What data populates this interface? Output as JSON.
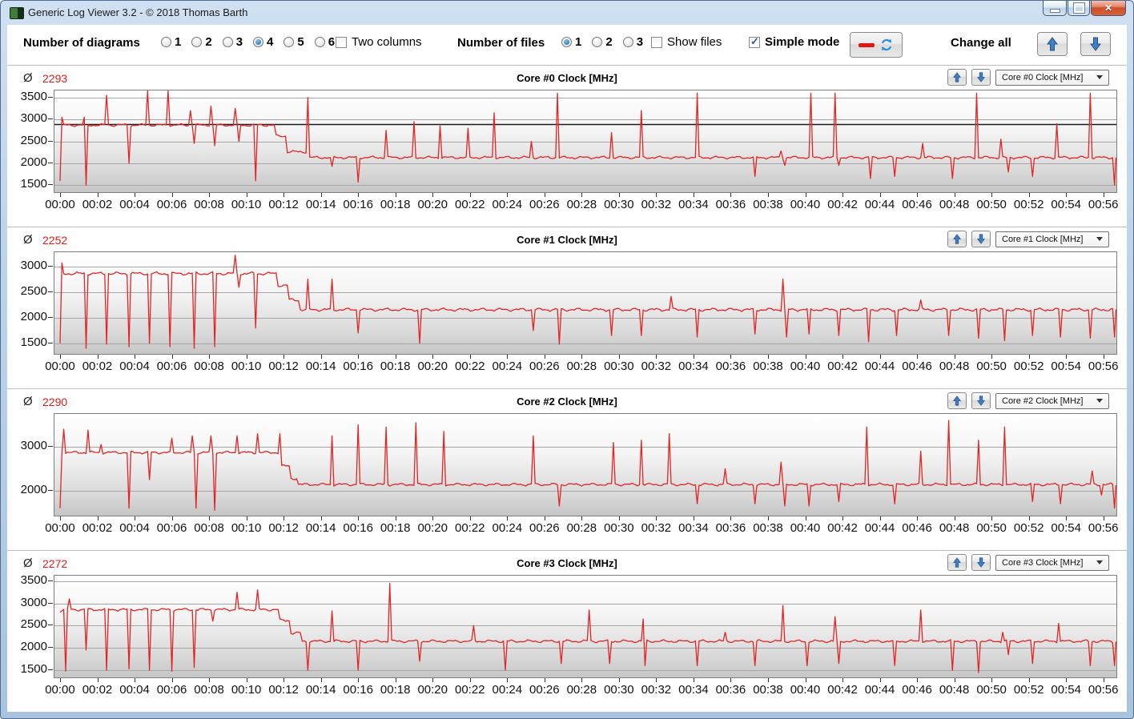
{
  "window": {
    "title": "Generic Log Viewer 3.2 - © 2018 Thomas Barth"
  },
  "icons": {
    "app": "green-log-viewer-icon",
    "minimize": "minimize-icon",
    "maximize": "maximize-icon",
    "close": "close-icon",
    "up": "blue-arrow-up-icon",
    "down": "blue-arrow-down-icon",
    "refresh": "red-line-refresh-icon",
    "average": "Ø",
    "dropdown_caret": "caret-down-icon"
  },
  "toolbar": {
    "diagrams_label": "Number of diagrams",
    "diagram_options": [
      "1",
      "2",
      "3",
      "4",
      "5",
      "6"
    ],
    "diagrams_selected": "4",
    "two_columns_label": "Two columns",
    "two_columns_checked": false,
    "files_label": "Number of files",
    "file_options": [
      "1",
      "2",
      "3"
    ],
    "files_selected": "1",
    "show_files_label": "Show files",
    "show_files_checked": false,
    "simple_mode_label": "Simple mode",
    "simple_mode_checked": true,
    "change_all_label": "Change all"
  },
  "panels": [
    {
      "avg_symbol": "Ø",
      "avg": "2293",
      "title": "Core #0 Clock [MHz]",
      "dropdown_value": "Core #0 Clock [MHz]"
    },
    {
      "avg_symbol": "Ø",
      "avg": "2252",
      "title": "Core #1 Clock [MHz]",
      "dropdown_value": "Core #1 Clock [MHz]"
    },
    {
      "avg_symbol": "Ø",
      "avg": "2290",
      "title": "Core #2 Clock [MHz]",
      "dropdown_value": "Core #2 Clock [MHz]"
    },
    {
      "avg_symbol": "Ø",
      "avg": "2272",
      "title": "Core #3 Clock [MHz]",
      "dropdown_value": "Core #3 Clock [MHz]"
    }
  ],
  "chart_data": [
    {
      "type": "line",
      "title": "Core #0 Clock [MHz]",
      "average": 2293,
      "unit": "MHz",
      "line_color": "#e32424",
      "x_tick_labels": [
        "00:00",
        "00:02",
        "00:04",
        "00:06",
        "00:08",
        "00:10",
        "00:12",
        "00:14",
        "00:16",
        "00:18",
        "00:20",
        "00:22",
        "00:24",
        "00:26",
        "00:28",
        "00:30",
        "00:32",
        "00:34",
        "00:36",
        "00:38",
        "00:40",
        "00:42",
        "00:44",
        "00:46",
        "00:48",
        "00:50",
        "00:52",
        "00:54",
        "00:56"
      ],
      "x_tick_minutes": [
        0,
        2,
        4,
        6,
        8,
        10,
        12,
        14,
        16,
        18,
        20,
        22,
        24,
        26,
        28,
        30,
        32,
        34,
        36,
        38,
        40,
        42,
        44,
        46,
        48,
        50,
        52,
        54,
        56
      ],
      "y_ticks": [
        1500,
        2000,
        2500,
        3000,
        3500
      ],
      "y_range": [
        1340,
        3660
      ],
      "ref_line": 2900,
      "baseline_segments": [
        [
          0,
          11.6,
          2870
        ],
        [
          11.6,
          12.2,
          2620
        ],
        [
          12.2,
          13.25,
          2260
        ],
        [
          13.25,
          57,
          2130
        ]
      ],
      "spike_events": [
        [
          0,
          1600
        ],
        [
          0.15,
          3050
        ],
        [
          1.3,
          3050
        ],
        [
          1.45,
          1500
        ],
        [
          2.45,
          3550
        ],
        [
          3.7,
          2000
        ],
        [
          4.7,
          3650
        ],
        [
          5.85,
          3650
        ],
        [
          7.0,
          3200
        ],
        [
          7.15,
          2450
        ],
        [
          8.1,
          3300
        ],
        [
          8.3,
          2400
        ],
        [
          9.4,
          3250
        ],
        [
          9.55,
          2500
        ],
        [
          10.5,
          1600
        ],
        [
          13.3,
          3500
        ],
        [
          14.6,
          1930
        ],
        [
          16.0,
          1570
        ],
        [
          17.5,
          2750
        ],
        [
          19.0,
          2950
        ],
        [
          20.4,
          2850
        ],
        [
          21.9,
          2800
        ],
        [
          23.3,
          3150
        ],
        [
          25.3,
          2500
        ],
        [
          26.7,
          3600
        ],
        [
          29.6,
          2700
        ],
        [
          31.2,
          3200
        ],
        [
          34.2,
          3600
        ],
        [
          37.3,
          1700
        ],
        [
          38.7,
          2280
        ],
        [
          38.85,
          1950
        ],
        [
          40.3,
          3600
        ],
        [
          41.65,
          3600
        ],
        [
          41.8,
          1950
        ],
        [
          43.5,
          1650
        ],
        [
          44.8,
          1700
        ],
        [
          46.3,
          2450
        ],
        [
          47.9,
          1650
        ],
        [
          49.2,
          3600
        ],
        [
          50.5,
          2550
        ],
        [
          50.9,
          1800
        ],
        [
          52.2,
          1700
        ],
        [
          53.5,
          2900
        ],
        [
          55.3,
          3600
        ],
        [
          56.6,
          1500
        ]
      ]
    },
    {
      "type": "line",
      "title": "Core #1 Clock [MHz]",
      "average": 2252,
      "unit": "MHz",
      "line_color": "#e32424",
      "x_tick_labels": [
        "00:00",
        "00:02",
        "00:04",
        "00:06",
        "00:08",
        "00:10",
        "00:12",
        "00:14",
        "00:16",
        "00:18",
        "00:20",
        "00:22",
        "00:24",
        "00:26",
        "00:28",
        "00:30",
        "00:32",
        "00:34",
        "00:36",
        "00:38",
        "00:40",
        "00:42",
        "00:44",
        "00:46",
        "00:48",
        "00:50",
        "00:52",
        "00:54",
        "00:56"
      ],
      "x_tick_minutes": [
        0,
        2,
        4,
        6,
        8,
        10,
        12,
        14,
        16,
        18,
        20,
        22,
        24,
        26,
        28,
        30,
        32,
        34,
        36,
        38,
        40,
        42,
        44,
        46,
        48,
        50,
        52,
        54,
        56
      ],
      "y_ticks": [
        1500,
        2000,
        2500,
        3000
      ],
      "y_range": [
        1290,
        3290
      ],
      "ref_line": null,
      "baseline_segments": [
        [
          0,
          11.7,
          2870
        ],
        [
          11.7,
          12.3,
          2640
        ],
        [
          12.3,
          12.9,
          2350
        ],
        [
          12.9,
          57,
          2160
        ]
      ],
      "spike_events": [
        [
          0,
          1500
        ],
        [
          0.15,
          3080
        ],
        [
          1.35,
          1400
        ],
        [
          2.5,
          1480
        ],
        [
          3.7,
          1430
        ],
        [
          4.8,
          1500
        ],
        [
          5.9,
          1430
        ],
        [
          7.15,
          1400
        ],
        [
          8.25,
          1430
        ],
        [
          9.45,
          3230
        ],
        [
          9.6,
          2600
        ],
        [
          10.5,
          1800
        ],
        [
          13.3,
          2760
        ],
        [
          14.6,
          2760
        ],
        [
          16.0,
          1700
        ],
        [
          19.3,
          1500
        ],
        [
          25.4,
          1750
        ],
        [
          26.8,
          1480
        ],
        [
          29.6,
          1650
        ],
        [
          31.2,
          1650
        ],
        [
          32.8,
          2420
        ],
        [
          34.2,
          1620
        ],
        [
          37.3,
          1680
        ],
        [
          38.8,
          2760
        ],
        [
          38.95,
          1620
        ],
        [
          40.2,
          1680
        ],
        [
          41.8,
          1650
        ],
        [
          43.4,
          1530
        ],
        [
          44.9,
          1650
        ],
        [
          46.2,
          2350
        ],
        [
          47.7,
          1650
        ],
        [
          49.3,
          1600
        ],
        [
          50.7,
          1550
        ],
        [
          52.2,
          1650
        ],
        [
          53.7,
          1620
        ],
        [
          55.3,
          1600
        ],
        [
          56.6,
          1620
        ]
      ]
    },
    {
      "type": "line",
      "title": "Core #2 Clock [MHz]",
      "average": 2290,
      "unit": "MHz",
      "line_color": "#e32424",
      "x_tick_labels": [
        "00:00",
        "00:02",
        "00:04",
        "00:06",
        "00:08",
        "00:10",
        "00:12",
        "00:14",
        "00:16",
        "00:18",
        "00:20",
        "00:22",
        "00:24",
        "00:26",
        "00:28",
        "00:30",
        "00:32",
        "00:34",
        "00:36",
        "00:38",
        "00:40",
        "00:42",
        "00:44",
        "00:46",
        "00:48",
        "00:50",
        "00:52",
        "00:54",
        "00:56"
      ],
      "x_tick_minutes": [
        0,
        2,
        4,
        6,
        8,
        10,
        12,
        14,
        16,
        18,
        20,
        22,
        24,
        26,
        28,
        30,
        32,
        34,
        36,
        38,
        40,
        42,
        44,
        46,
        48,
        50,
        52,
        54,
        56
      ],
      "y_ticks": [
        2000,
        3000
      ],
      "y_range": [
        1430,
        3750
      ],
      "ref_line": null,
      "baseline_segments": [
        [
          0,
          11.8,
          2870
        ],
        [
          11.8,
          12.35,
          2560
        ],
        [
          12.35,
          12.8,
          2280
        ],
        [
          12.8,
          57,
          2140
        ]
      ],
      "spike_events": [
        [
          0,
          1600
        ],
        [
          0.2,
          3400
        ],
        [
          1.5,
          3380
        ],
        [
          2.2,
          3050
        ],
        [
          3.7,
          1600
        ],
        [
          4.75,
          2250
        ],
        [
          6.0,
          3200
        ],
        [
          7.1,
          3250
        ],
        [
          7.25,
          1600
        ],
        [
          8.1,
          3250
        ],
        [
          8.25,
          1550
        ],
        [
          9.5,
          3250
        ],
        [
          10.6,
          3300
        ],
        [
          11.75,
          3300
        ],
        [
          14.6,
          3250
        ],
        [
          16.0,
          3500
        ],
        [
          17.5,
          3450
        ],
        [
          19.1,
          3550
        ],
        [
          20.6,
          3350
        ],
        [
          25.4,
          3250
        ],
        [
          26.8,
          1650
        ],
        [
          29.7,
          3100
        ],
        [
          31.2,
          3150
        ],
        [
          32.7,
          3300
        ],
        [
          34.2,
          1700
        ],
        [
          35.7,
          2500
        ],
        [
          37.3,
          1700
        ],
        [
          38.7,
          2650
        ],
        [
          38.85,
          1650
        ],
        [
          40.2,
          1650
        ],
        [
          41.8,
          1750
        ],
        [
          43.3,
          3450
        ],
        [
          44.8,
          1700
        ],
        [
          46.2,
          2900
        ],
        [
          47.7,
          3600
        ],
        [
          49.3,
          3150
        ],
        [
          50.7,
          3450
        ],
        [
          52.2,
          1750
        ],
        [
          53.7,
          1700
        ],
        [
          55.4,
          2450
        ],
        [
          55.9,
          1900
        ],
        [
          56.6,
          1600
        ]
      ]
    },
    {
      "type": "line",
      "title": "Core #3 Clock [MHz]",
      "average": 2272,
      "unit": "MHz",
      "line_color": "#e32424",
      "x_tick_labels": [
        "00:00",
        "00:02",
        "00:04",
        "00:06",
        "00:08",
        "00:10",
        "00:12",
        "00:14",
        "00:16",
        "00:18",
        "00:20",
        "00:22",
        "00:24",
        "00:26",
        "00:28",
        "00:30",
        "00:32",
        "00:34",
        "00:36",
        "00:38",
        "00:40",
        "00:42",
        "00:44",
        "00:46",
        "00:48",
        "00:50",
        "00:52",
        "00:54",
        "00:56"
      ],
      "x_tick_minutes": [
        0,
        2,
        4,
        6,
        8,
        10,
        12,
        14,
        16,
        18,
        20,
        22,
        24,
        26,
        28,
        30,
        32,
        34,
        36,
        38,
        40,
        42,
        44,
        46,
        48,
        50,
        52,
        54,
        56
      ],
      "y_ticks": [
        1500,
        2000,
        2500,
        3000,
        3500
      ],
      "y_range": [
        1340,
        3620
      ],
      "ref_line": null,
      "baseline_segments": [
        [
          0,
          11.8,
          2860
        ],
        [
          11.8,
          12.4,
          2620
        ],
        [
          12.4,
          13.0,
          2330
        ],
        [
          13.0,
          57,
          2150
        ]
      ],
      "spike_events": [
        [
          0,
          2800
        ],
        [
          0.25,
          1480
        ],
        [
          0.45,
          3100
        ],
        [
          1.35,
          1950
        ],
        [
          2.5,
          1500
        ],
        [
          3.7,
          1530
        ],
        [
          4.8,
          1500
        ],
        [
          6.0,
          1480
        ],
        [
          7.15,
          1560
        ],
        [
          8.2,
          2600
        ],
        [
          9.5,
          3250
        ],
        [
          10.55,
          3300
        ],
        [
          13.3,
          1500
        ],
        [
          14.6,
          2830
        ],
        [
          16.0,
          1500
        ],
        [
          17.7,
          3450
        ],
        [
          19.3,
          1700
        ],
        [
          22.2,
          2500
        ],
        [
          23.9,
          1500
        ],
        [
          26.9,
          1650
        ],
        [
          28.4,
          2850
        ],
        [
          29.5,
          1650
        ],
        [
          31.25,
          2650
        ],
        [
          31.4,
          1600
        ],
        [
          34.2,
          1600
        ],
        [
          35.7,
          2350
        ],
        [
          37.3,
          1600
        ],
        [
          38.8,
          2950
        ],
        [
          40.1,
          1600
        ],
        [
          41.6,
          2700
        ],
        [
          41.75,
          1650
        ],
        [
          44.8,
          1600
        ],
        [
          46.2,
          2850
        ],
        [
          47.9,
          1500
        ],
        [
          49.3,
          1450
        ],
        [
          50.6,
          2350
        ],
        [
          50.85,
          1850
        ],
        [
          52.2,
          1650
        ],
        [
          53.6,
          2550
        ],
        [
          55.3,
          1600
        ],
        [
          56.6,
          1600
        ]
      ]
    }
  ],
  "colors": {
    "line": "#e32424",
    "average_text": "#e01b1b",
    "grid": "#a6a6a6",
    "plot_border": "#7f7f7f",
    "ref_line": "#1a1a1a",
    "accent_blue": "#3f7fc8"
  }
}
